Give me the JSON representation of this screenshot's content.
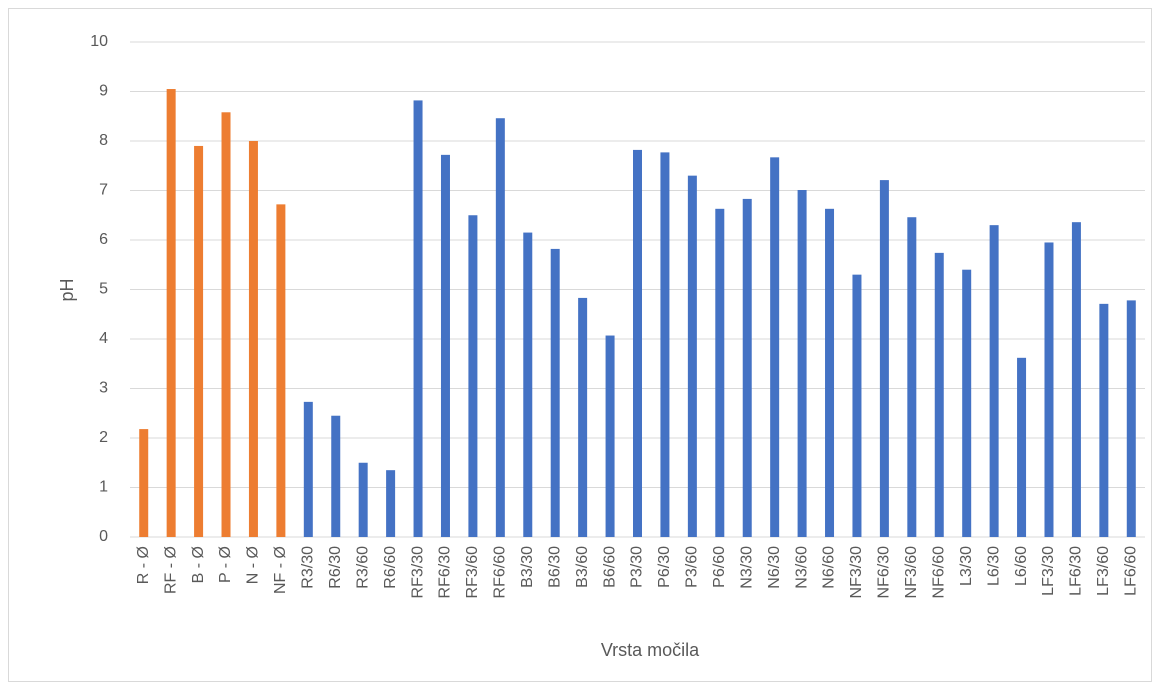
{
  "chart_data": {
    "type": "bar",
    "x_label": "Vrsta močila",
    "y_label": "pH",
    "categories": [
      "R - Ø",
      "RF - Ø",
      "B - Ø",
      "P - Ø",
      "N - Ø",
      "NF - Ø",
      "R3/30",
      "R6/30",
      "R3/60",
      "R6/60",
      "RF3/30",
      "RF6/30",
      "RF3/60",
      "RF6/60",
      "B3/30",
      "B6/30",
      "B3/60",
      "B6/60",
      "P3/30",
      "P6/30",
      "P3/60",
      "P6/60",
      "N3/30",
      "N6/30",
      "N3/60",
      "N6/60",
      "NF3/30",
      "NF6/30",
      "NF3/60",
      "NF6/60",
      "L3/30",
      "L6/30",
      "L6/60",
      "LF3/30",
      "LF6/30",
      "LF3/60",
      "LF6/60"
    ],
    "values": [
      2.18,
      9.05,
      7.9,
      8.58,
      8.0,
      6.72,
      2.73,
      2.45,
      1.5,
      1.35,
      8.82,
      7.72,
      6.5,
      8.46,
      6.15,
      5.82,
      4.83,
      4.07,
      7.82,
      7.77,
      7.3,
      6.63,
      6.83,
      7.67,
      7.01,
      6.63,
      5.3,
      7.21,
      6.46,
      5.74,
      5.4,
      6.3,
      3.62,
      5.95,
      6.36,
      4.71,
      4.78
    ],
    "colors": [
      "#ed7d31",
      "#ed7d31",
      "#ed7d31",
      "#ed7d31",
      "#ed7d31",
      "#ed7d31",
      "#4472c4",
      "#4472c4",
      "#4472c4",
      "#4472c4",
      "#4472c4",
      "#4472c4",
      "#4472c4",
      "#4472c4",
      "#4472c4",
      "#4472c4",
      "#4472c4",
      "#4472c4",
      "#4472c4",
      "#4472c4",
      "#4472c4",
      "#4472c4",
      "#4472c4",
      "#4472c4",
      "#4472c4",
      "#4472c4",
      "#4472c4",
      "#4472c4",
      "#4472c4",
      "#4472c4",
      "#4472c4",
      "#4472c4",
      "#4472c4",
      "#4472c4",
      "#4472c4",
      "#4472c4",
      "#4472c4"
    ],
    "ylim": [
      0,
      10
    ],
    "yticks": [
      0,
      1,
      2,
      3,
      4,
      5,
      6,
      7,
      8,
      9,
      10
    ],
    "grid": true
  }
}
